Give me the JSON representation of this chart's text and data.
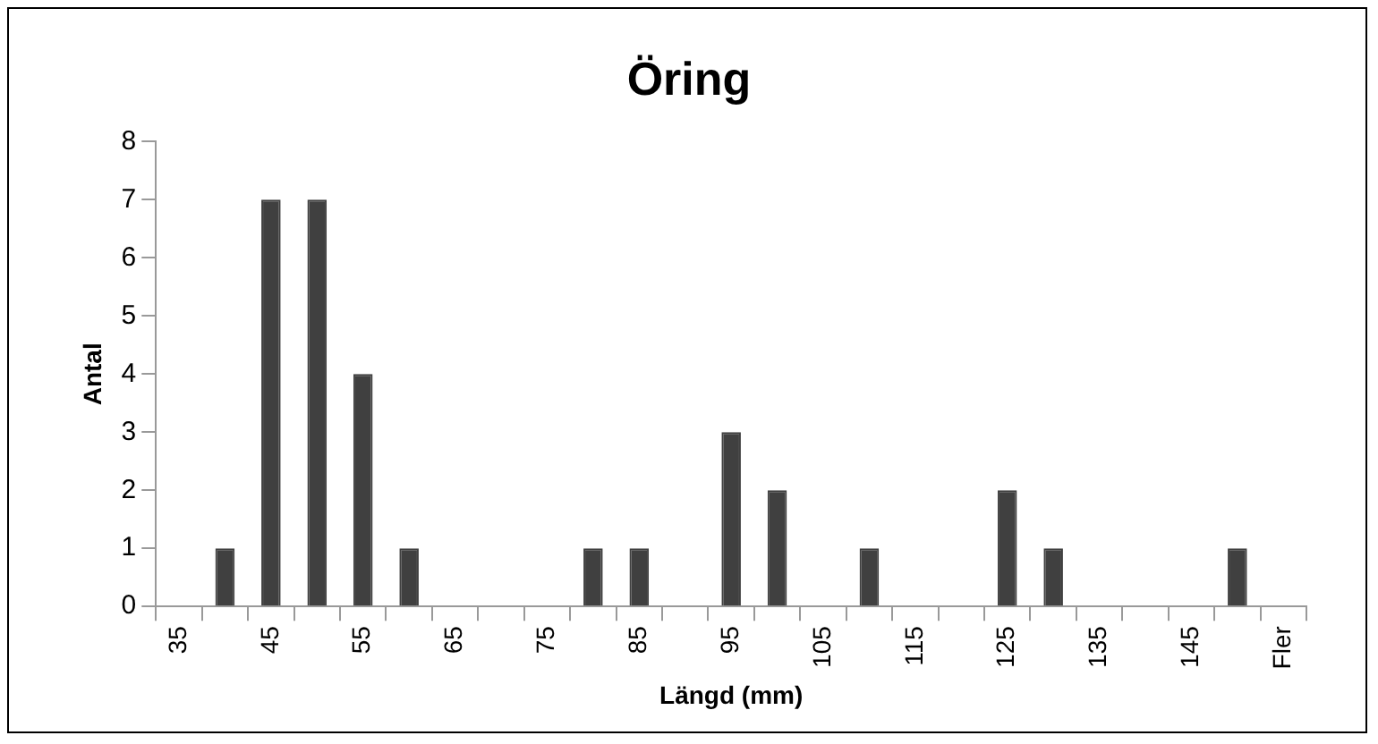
{
  "chart_data": {
    "type": "bar",
    "title": "Öring",
    "xlabel": "Längd (mm)",
    "ylabel": "Antal",
    "categories": [
      "35",
      null,
      "45",
      null,
      "55",
      null,
      "65",
      null,
      "75",
      null,
      "85",
      null,
      "95",
      null,
      "105",
      null,
      "115",
      null,
      "125",
      null,
      "135",
      null,
      "145",
      null,
      "Fler"
    ],
    "values": [
      0,
      1,
      7,
      7,
      4,
      1,
      0,
      0,
      0,
      1,
      1,
      0,
      3,
      2,
      0,
      1,
      0,
      0,
      2,
      1,
      0,
      0,
      0,
      1,
      0
    ],
    "color": "#404040",
    "ylim": [
      0,
      8
    ],
    "yticks": [
      0,
      1,
      2,
      3,
      4,
      5,
      6,
      7,
      8
    ],
    "grid": false,
    "legend": false
  }
}
